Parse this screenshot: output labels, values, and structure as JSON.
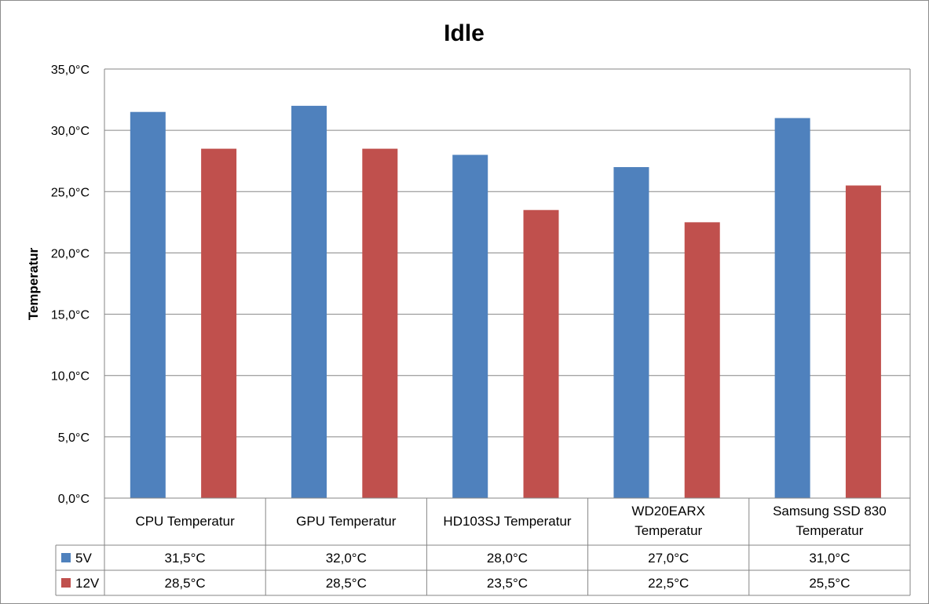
{
  "chart_data": {
    "type": "bar",
    "title": "Idle",
    "ylabel": "Temperatur",
    "xlabel": "",
    "ylim": [
      0,
      35
    ],
    "ytick_step": 5,
    "yticks": [
      "0,0°C",
      "5,0°C",
      "10,0°C",
      "15,0°C",
      "20,0°C",
      "25,0°C",
      "30,0°C",
      "35,0°C"
    ],
    "grid": true,
    "legend": "data-table",
    "categories": [
      [
        "CPU Temperatur"
      ],
      [
        "GPU Temperatur"
      ],
      [
        "HD103SJ Temperatur"
      ],
      [
        "WD20EARX",
        "Temperatur"
      ],
      [
        "Samsung SSD 830",
        "Temperatur"
      ]
    ],
    "series": [
      {
        "name": "5V",
        "color": "#4f81bd",
        "values": [
          31.5,
          32.0,
          28.0,
          27.0,
          31.0
        ],
        "labels": [
          "31,5°C",
          "32,0°C",
          "28,0°C",
          "27,0°C",
          "31,0°C"
        ]
      },
      {
        "name": "12V",
        "color": "#c0504d",
        "values": [
          28.5,
          28.5,
          23.5,
          22.5,
          25.5
        ],
        "labels": [
          "28,5°C",
          "28,5°C",
          "23,5°C",
          "22,5°C",
          "25,5°C"
        ]
      }
    ]
  }
}
